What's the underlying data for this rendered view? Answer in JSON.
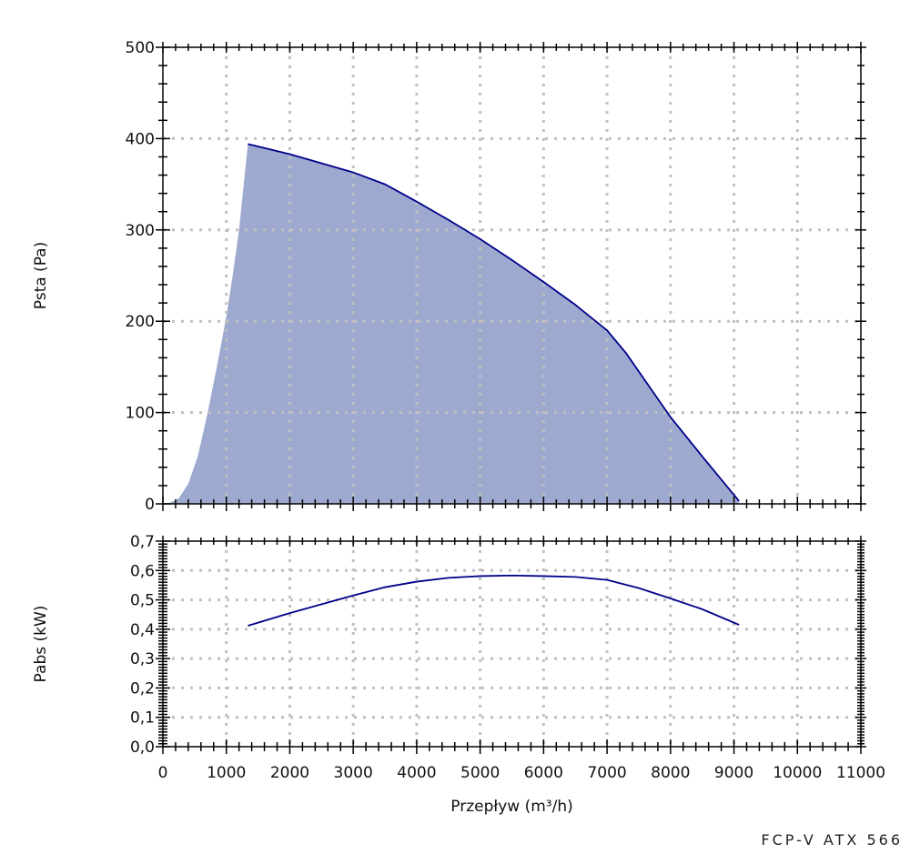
{
  "colors": {
    "curve": "#00008b",
    "fill": "#9ea9cf",
    "grid": "#c0c0c0",
    "axis": "#000000"
  },
  "footer_label": "FCP-V ATX 566",
  "chart_data": [
    {
      "type": "area",
      "ylabel": "Psta (Pa)",
      "xlim": [
        0,
        11000
      ],
      "ylim": [
        0,
        500
      ],
      "yticks": [
        "0",
        "100",
        "200",
        "300",
        "400",
        "500"
      ],
      "grid": true,
      "fan_curve": {
        "x": [
          1340,
          2000,
          2500,
          3000,
          3500,
          4000,
          4500,
          5000,
          5500,
          6000,
          6500,
          7000,
          7300,
          7600,
          8000,
          8500,
          9080
        ],
        "y": [
          394,
          383,
          373,
          363,
          350,
          331,
          311,
          290,
          267,
          243,
          218,
          190,
          165,
          135,
          95,
          52,
          3
        ]
      },
      "left_boundary": {
        "x": [
          0,
          100,
          250,
          400,
          550,
          700,
          850,
          1000,
          1100,
          1200,
          1340
        ],
        "y": [
          0,
          1,
          6,
          22,
          52,
          98,
          150,
          205,
          250,
          300,
          394
        ]
      }
    },
    {
      "type": "line",
      "xlabel": "Przepływ (m³/h)",
      "ylabel": "Pabs (kW)",
      "xlim": [
        0,
        11000
      ],
      "ylim": [
        0,
        0.7
      ],
      "xticks": [
        "0",
        "1000",
        "2000",
        "3000",
        "4000",
        "5000",
        "6000",
        "7000",
        "8000",
        "9000",
        "10000",
        "11000"
      ],
      "yticks": [
        "0,0",
        "0,1",
        "0,2",
        "0,3",
        "0,4",
        "0,5",
        "0,6",
        "0,7"
      ],
      "grid": true,
      "series": [
        {
          "x": [
            1340,
            2000,
            3000,
            3500,
            4000,
            4500,
            5000,
            5500,
            6000,
            6500,
            7000,
            7500,
            8000,
            8500,
            9080
          ],
          "y": [
            0.412,
            0.455,
            0.515,
            0.543,
            0.562,
            0.575,
            0.581,
            0.583,
            0.581,
            0.578,
            0.568,
            0.54,
            0.505,
            0.468,
            0.415
          ]
        }
      ]
    }
  ]
}
